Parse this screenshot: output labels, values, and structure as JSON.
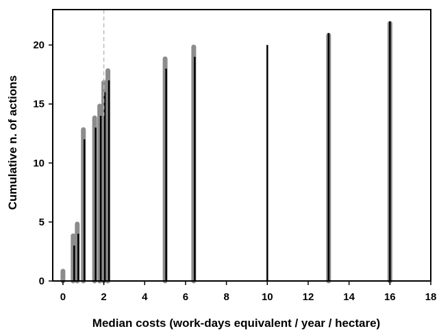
{
  "chart_data": {
    "type": "bar",
    "xlabel": "Median costs (work-days equivalent / year / hectare)",
    "ylabel": "Cumulative n. of actions",
    "xlim": [
      -0.5,
      18
    ],
    "ylim": [
      0,
      23
    ],
    "xticks": [
      0,
      2,
      4,
      6,
      8,
      10,
      12,
      14,
      16,
      18
    ],
    "yticks": [
      0,
      5,
      10,
      15,
      20
    ],
    "reference_line": {
      "x": 2,
      "style": "dashed",
      "color": "#bbbbbb"
    },
    "series": [
      {
        "x": [
          0,
          0.5,
          0.7,
          1.0,
          1.55,
          1.8,
          2.0,
          2.2,
          5.0,
          6.4,
          13.0,
          16.0
        ],
        "values": [
          1,
          4,
          5,
          13,
          14,
          15,
          17,
          18,
          19,
          20,
          21,
          22
        ],
        "color": "#8c8c8c"
      },
      {
        "x": [
          0.55,
          0.75,
          1.05,
          1.6,
          1.85,
          2.05,
          2.25,
          5.05,
          6.45,
          10.0,
          13.0,
          16.0
        ],
        "values": [
          3,
          4,
          12,
          13,
          14,
          16,
          17,
          18,
          19,
          20,
          21,
          22
        ],
        "color": "#000000"
      }
    ],
    "grid": false,
    "legend": "none"
  }
}
